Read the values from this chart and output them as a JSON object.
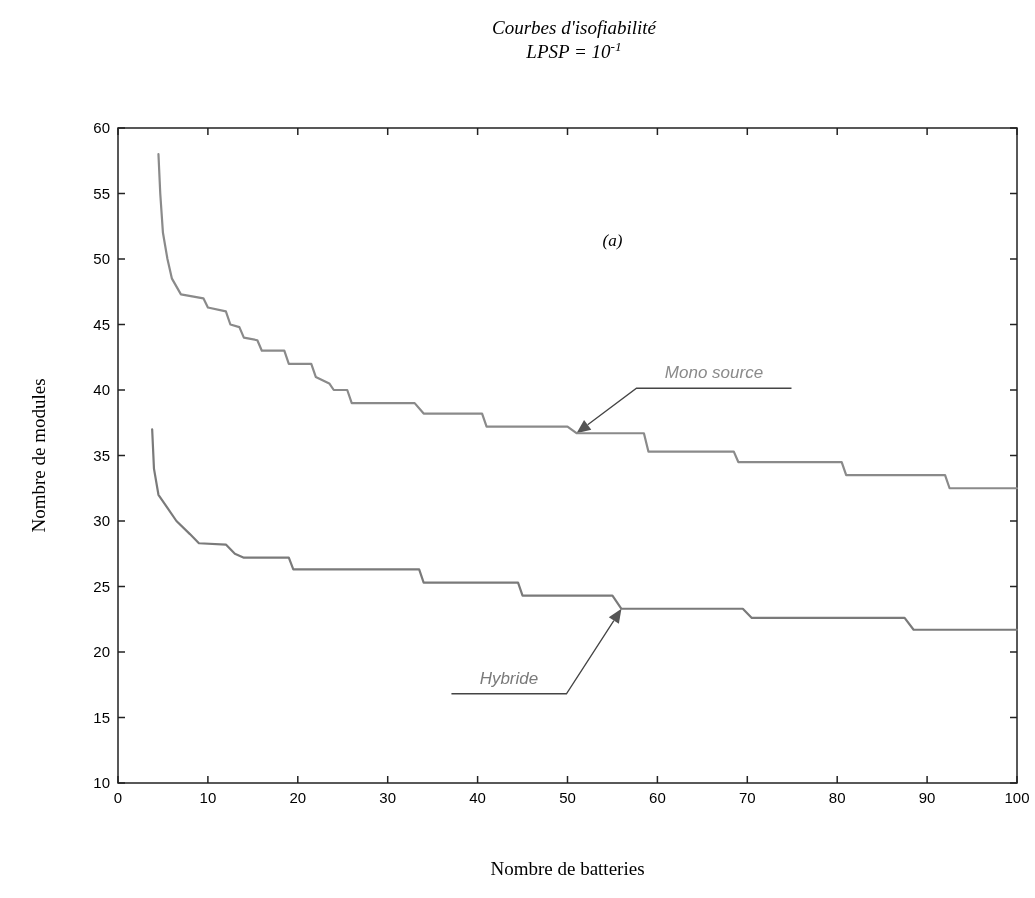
{
  "chart_data": {
    "type": "line",
    "title": "Courbes d'isofiabilité",
    "subtitle": "LPSP = 10$^{-1}$",
    "xlabel": "Nombre de batteries",
    "ylabel": "Nombre de modules",
    "xlim": [
      0,
      100
    ],
    "xticks": [
      0,
      10,
      20,
      30,
      40,
      50,
      60,
      70,
      80,
      90,
      100
    ],
    "ylim": [
      10,
      60
    ],
    "yticks": [
      10,
      15,
      20,
      25,
      30,
      35,
      40,
      45,
      50,
      55,
      60
    ],
    "grid": false,
    "legend": false,
    "marker": "none",
    "line_style": "solid",
    "annotations": [
      "(a)"
    ],
    "series": [
      {
        "name": "Mono source",
        "color": "#8a8a8a",
        "x": [
          4.5,
          4.7,
          5,
          5.5,
          6,
          7,
          9.5,
          10,
          12,
          12.5,
          13.5,
          14,
          15.5,
          16,
          18.5,
          19,
          21.5,
          22,
          23.5,
          24,
          25.5,
          26,
          33,
          34,
          40.5,
          41,
          50,
          51,
          58.5,
          59,
          68.5,
          69,
          80.5,
          81,
          92,
          92.5,
          100
        ],
        "values": [
          58,
          55,
          52,
          50,
          48.5,
          47.3,
          47,
          46.3,
          46,
          45,
          44.8,
          44,
          43.8,
          43,
          43,
          42,
          42,
          41,
          40.5,
          40,
          40,
          39,
          39,
          38.2,
          38.2,
          37.2,
          37.2,
          36.7,
          36.7,
          35.3,
          35.3,
          34.5,
          34.5,
          33.5,
          33.5,
          32.5,
          32.5
        ]
      },
      {
        "name": "Hybride",
        "color": "#7a7a7a",
        "x": [
          3.8,
          4,
          4.5,
          5.5,
          6.5,
          8,
          9,
          12,
          13,
          14,
          19,
          19.5,
          33.5,
          34,
          44.5,
          45,
          55,
          56,
          69.5,
          70.5,
          87.5,
          88.5,
          100
        ],
        "values": [
          37,
          34,
          32,
          31,
          30,
          29,
          28.3,
          28.2,
          27.5,
          27.2,
          27.2,
          26.3,
          26.3,
          25.3,
          25.3,
          24.3,
          24.3,
          23.3,
          23.3,
          22.6,
          22.6,
          21.7,
          21.7
        ]
      }
    ]
  }
}
